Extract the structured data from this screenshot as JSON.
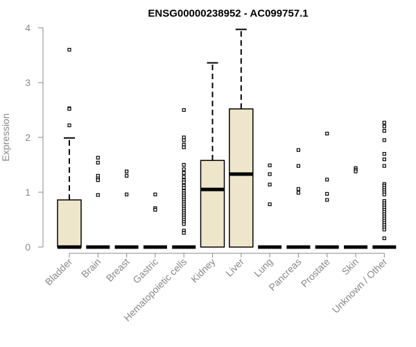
{
  "chart_data": {
    "type": "box",
    "title": "ENSG00000238952 - AC099757.1",
    "xlabel": "",
    "ylabel": "Expression",
    "ylim": [
      0,
      4
    ],
    "yticks": [
      0,
      1,
      2,
      3,
      4
    ],
    "grid": false,
    "box_fill": "#ede6ca",
    "categories": [
      "Bladder",
      "Brain",
      "Breast",
      "Gastric",
      "Hematopoietic cells",
      "Kidney",
      "Liver",
      "Lung",
      "Pancreas",
      "Prostate",
      "Skin",
      "Unknown / Other"
    ],
    "boxes": [
      {
        "q1": 0,
        "median": 0,
        "q3": 0.86,
        "whisker_low": 0,
        "whisker_high": 1.99,
        "outliers": [
          3.6,
          2.53,
          2.52,
          2.22
        ]
      },
      {
        "q1": 0,
        "median": 0,
        "q3": 0,
        "whisker_low": 0,
        "whisker_high": 0,
        "outliers": [
          1.63,
          1.54,
          1.3,
          1.25,
          1.22,
          0.95
        ]
      },
      {
        "q1": 0,
        "median": 0,
        "q3": 0,
        "whisker_low": 0,
        "whisker_high": 0,
        "outliers": [
          1.38,
          1.3,
          0.96
        ]
      },
      {
        "q1": 0,
        "median": 0,
        "q3": 0,
        "whisker_low": 0,
        "whisker_high": 0,
        "outliers": [
          0.96,
          0.71,
          0.68
        ]
      },
      {
        "q1": 0,
        "median": 0,
        "q3": 0,
        "whisker_low": 0,
        "whisker_high": 0,
        "outliers": [
          2.5,
          2.0,
          1.95,
          1.87,
          1.82,
          1.5,
          1.42,
          1.35,
          1.28,
          1.22,
          1.18,
          1.12,
          1.08,
          1.02,
          0.98,
          0.94,
          0.9,
          0.86,
          0.82,
          0.78,
          0.74,
          0.7,
          0.66,
          0.62,
          0.58,
          0.54,
          0.5,
          0.46,
          0.42,
          0.3,
          0.26
        ]
      },
      {
        "q1": 0,
        "median": 1.05,
        "q3": 1.58,
        "whisker_low": 0,
        "whisker_high": 3.36,
        "outliers": []
      },
      {
        "q1": 0,
        "median": 1.33,
        "q3": 2.52,
        "whisker_low": 0,
        "whisker_high": 3.97,
        "outliers": []
      },
      {
        "q1": 0,
        "median": 0,
        "q3": 0,
        "whisker_low": 0,
        "whisker_high": 0,
        "outliers": [
          1.49,
          1.33,
          1.14,
          0.78
        ]
      },
      {
        "q1": 0,
        "median": 0,
        "q3": 0,
        "whisker_low": 0,
        "whisker_high": 0,
        "outliers": [
          1.77,
          1.48,
          1.06,
          0.99
        ]
      },
      {
        "q1": 0,
        "median": 0,
        "q3": 0,
        "whisker_low": 0,
        "whisker_high": 0,
        "outliers": [
          2.07,
          1.23,
          0.97,
          0.86
        ]
      },
      {
        "q1": 0,
        "median": 0,
        "q3": 0,
        "whisker_low": 0,
        "whisker_high": 0,
        "outliers": [
          1.44,
          1.41,
          1.38
        ]
      },
      {
        "q1": 0,
        "median": 0,
        "q3": 0,
        "whisker_low": 0,
        "whisker_high": 0,
        "outliers": [
          2.27,
          2.2,
          2.12,
          1.95,
          1.7,
          1.6,
          1.48,
          1.15,
          1.12,
          1.08,
          1.04,
          1.0,
          0.96,
          0.84,
          0.8,
          0.76,
          0.72,
          0.68,
          0.64,
          0.6,
          0.56,
          0.52,
          0.48,
          0.44,
          0.4,
          0.36,
          0.32,
          0.16
        ]
      }
    ]
  }
}
